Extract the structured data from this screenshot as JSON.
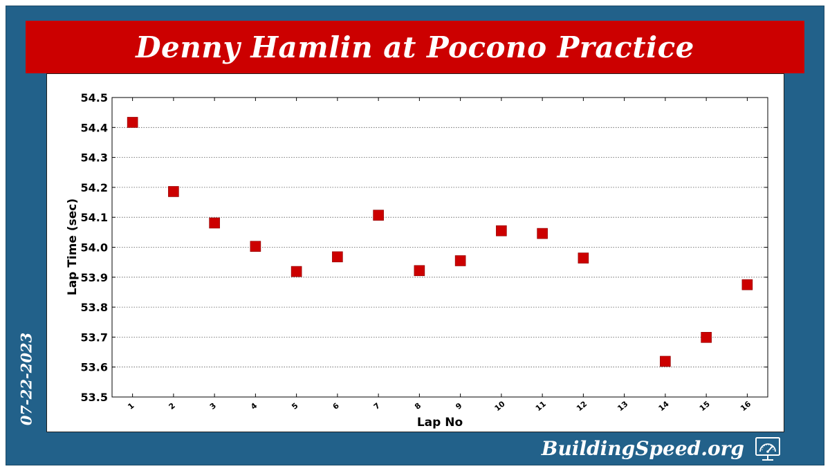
{
  "page": {
    "title": "Denny Hamlin at Pocono Practice",
    "date": "07-22-2023",
    "brand": "BuildingSpeed.org",
    "logo_icon": "speedometer-monitor-icon",
    "colors": {
      "background_panel": "#22618a",
      "title_banner": "#cc0000",
      "marker": "#cc0000"
    }
  },
  "chart_data": {
    "type": "scatter",
    "title": "Denny Hamlin at Pocono Practice",
    "xlabel": "Lap No",
    "ylabel": "Lap Time (sec)",
    "x_ticks": [
      "1",
      "2",
      "3",
      "4",
      "5",
      "6",
      "7",
      "8",
      "9",
      "10",
      "11",
      "12",
      "13",
      "14",
      "15",
      "16"
    ],
    "y_ticks": [
      "53.5",
      "53.6",
      "53.7",
      "53.8",
      "53.9",
      "54.0",
      "54.1",
      "54.2",
      "54.3",
      "54.4",
      "54.5"
    ],
    "xlim": [
      0.5,
      16.5
    ],
    "ylim": [
      53.5,
      54.5
    ],
    "grid": "horizontal-dotted",
    "marker": "square",
    "series": [
      {
        "x": [
          1,
          2,
          3,
          4,
          5,
          6,
          7,
          8,
          9,
          10,
          11,
          12,
          14,
          15,
          16
        ],
        "y": [
          54.417,
          54.186,
          54.081,
          54.003,
          53.919,
          53.968,
          54.107,
          53.922,
          53.955,
          54.055,
          54.046,
          53.964,
          53.619,
          53.699,
          53.875
        ]
      }
    ]
  }
}
